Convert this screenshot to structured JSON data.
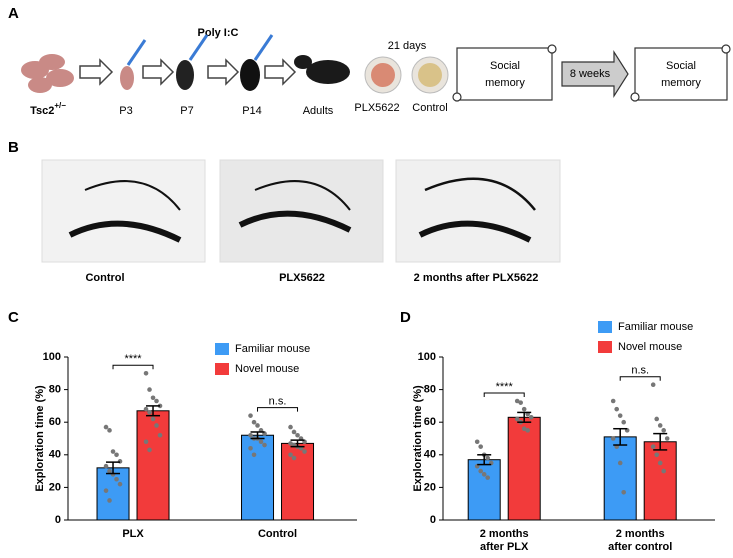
{
  "panel_labels": [
    "A",
    "B",
    "C",
    "D"
  ],
  "schematic": {
    "strain": "Tsc2",
    "strain_sup": "+/−",
    "injection": "Poly I:C",
    "ages": [
      "P3",
      "P7",
      "P14",
      "Adults"
    ],
    "duration": "21 days",
    "treatments": [
      "PLX5622",
      "Control"
    ],
    "test": [
      "Social",
      "memory"
    ],
    "interval": "8 weeks"
  },
  "images": {
    "labels": [
      "Control",
      "PLX5622",
      "2 months after PLX5622"
    ]
  },
  "chart_data": [
    {
      "type": "bar",
      "ylabel": "Exploration time (%)",
      "categories": [
        [
          "PLX"
        ],
        [
          "Control"
        ]
      ],
      "ylim": [
        0,
        100
      ],
      "yticks": [
        0,
        20,
        40,
        60,
        80,
        100
      ],
      "significance": [
        "****",
        "n.s."
      ],
      "series": [
        {
          "name": "Familiar mouse",
          "color": "#3d9bf5",
          "values": [
            32,
            52
          ],
          "errors": [
            3.5,
            2
          ],
          "points": [
            [
              57,
              55,
              42,
              40,
              36,
              33,
              30,
              28,
              25,
              22,
              18,
              12
            ],
            [
              64,
              60,
              58,
              55,
              53,
              52,
              50,
              50,
              48,
              46,
              44,
              40
            ]
          ]
        },
        {
          "name": "Novel mouse",
          "color": "#f23b3b",
          "values": [
            67,
            47
          ],
          "errors": [
            3,
            2
          ],
          "points": [
            [
              90,
              80,
              75,
              73,
              70,
              68,
              66,
              62,
              58,
              52,
              48,
              43
            ],
            [
              57,
              54,
              52,
              50,
              48,
              47,
              46,
              45,
              44,
              42,
              40,
              38
            ]
          ]
        }
      ]
    },
    {
      "type": "bar",
      "ylabel": "Exploration time (%)",
      "categories": [
        [
          "2 months",
          "after PLX"
        ],
        [
          "2 months",
          "after control"
        ]
      ],
      "ylim": [
        0,
        100
      ],
      "yticks": [
        0,
        20,
        40,
        60,
        80,
        100
      ],
      "significance": [
        "****",
        "n.s."
      ],
      "series": [
        {
          "name": "Familiar mouse",
          "color": "#3d9bf5",
          "values": [
            37,
            51
          ],
          "errors": [
            3,
            5
          ],
          "points": [
            [
              48,
              45,
              40,
              38,
              35,
              33,
              30,
              28,
              26
            ],
            [
              73,
              68,
              64,
              60,
              55,
              50,
              45,
              35,
              17
            ]
          ]
        },
        {
          "name": "Novel mouse",
          "color": "#f23b3b",
          "values": [
            63,
            48
          ],
          "errors": [
            3,
            5
          ],
          "points": [
            [
              73,
              72,
              68,
              65,
              63,
              62,
              60,
              56,
              55
            ],
            [
              83,
              62,
              58,
              55,
              50,
              45,
              40,
              35,
              30
            ]
          ]
        }
      ]
    }
  ]
}
